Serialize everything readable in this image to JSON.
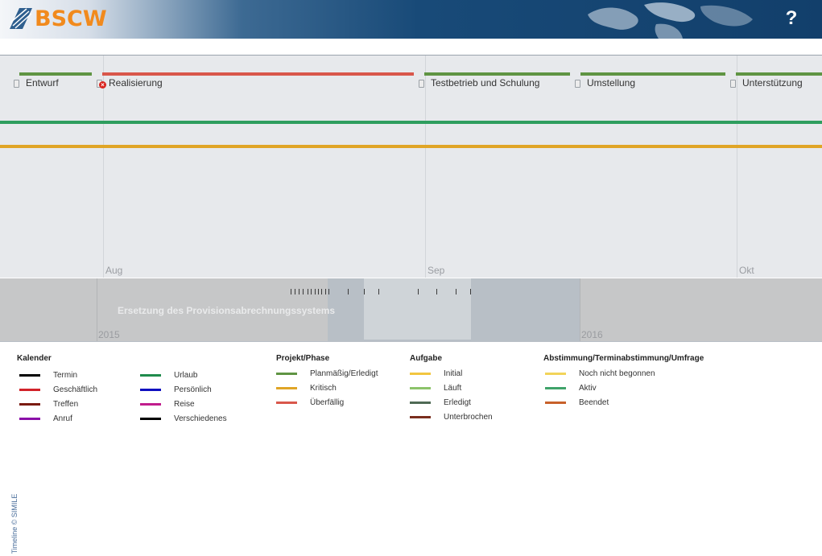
{
  "header": {
    "logo_text": "BSCW",
    "help_label": "?",
    "accent": "#f18a1d"
  },
  "timeline": {
    "months": [
      "Aug",
      "Sep",
      "Okt"
    ],
    "phases": [
      {
        "label": "Entwurf",
        "color": "#5f9443",
        "icon": "document-icon"
      },
      {
        "label": "Realisierung",
        "color": "#d9574b",
        "icon": "document-error-icon"
      },
      {
        "label": "Testbetrieb und Schulung",
        "color": "#5f9443",
        "icon": "document-icon"
      },
      {
        "label": "Umstellung",
        "color": "#5f9443",
        "icon": "document-icon"
      },
      {
        "label": "Unterstützung",
        "color": "#5f9443",
        "icon": "document-icon"
      }
    ],
    "lines": [
      {
        "color": "#2e9e5e"
      },
      {
        "color": "#e0a526"
      }
    ],
    "overview": {
      "project": "Ersetzung des Provisionsabrechnungssystems",
      "years": [
        "2015",
        "2016"
      ]
    },
    "credit": "Timeline © SIMILE"
  },
  "legend": {
    "groups": [
      {
        "title": "Kalender",
        "items": [
          {
            "label": "Termin",
            "color": "#000000"
          },
          {
            "label": "Geschäftlich",
            "color": "#d2232a"
          },
          {
            "label": "Treffen",
            "color": "#7a1a10"
          },
          {
            "label": "Anruf",
            "color": "#8b10a8"
          },
          {
            "label": "Urlaub",
            "color": "#1f8b4c"
          },
          {
            "label": "Persönlich",
            "color": "#1010c0"
          },
          {
            "label": "Reise",
            "color": "#c01c8c"
          },
          {
            "label": "Verschiedenes",
            "color": "#000000"
          }
        ]
      },
      {
        "title": "Projekt/Phase",
        "items": [
          {
            "label": "Planmäßig/Erledigt",
            "color": "#5f9443"
          },
          {
            "label": "Kritisch",
            "color": "#e0a526"
          },
          {
            "label": "Überfällig",
            "color": "#d9574b"
          }
        ]
      },
      {
        "title": "Aufgabe",
        "items": [
          {
            "label": "Initial",
            "color": "#f2c640"
          },
          {
            "label": "Läuft",
            "color": "#8cc36a"
          },
          {
            "label": "Erledigt",
            "color": "#4f6a55"
          },
          {
            "label": "Unterbrochen",
            "color": "#7a2e1e"
          }
        ]
      },
      {
        "title": "Abstimmung/Terminabstimmung/Umfrage",
        "items": [
          {
            "label": "Noch nicht begonnen",
            "color": "#f2d45a"
          },
          {
            "label": "Aktiv",
            "color": "#3fa36a"
          },
          {
            "label": "Beendet",
            "color": "#c8612a"
          }
        ]
      }
    ]
  }
}
